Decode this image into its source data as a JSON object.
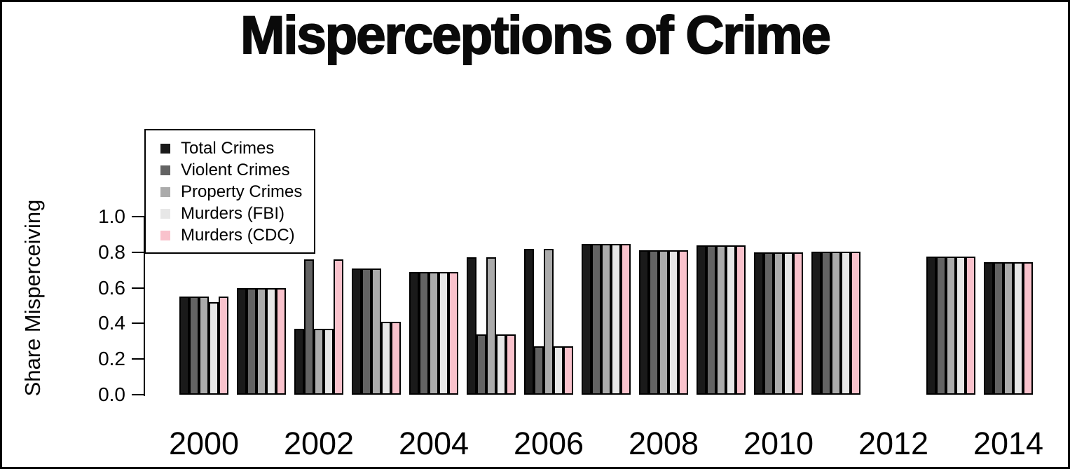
{
  "title": "Misperceptions of Crime",
  "chart_data": {
    "type": "bar",
    "title": "Misperceptions of Crime",
    "xlabel": "",
    "ylabel": "Share Misperceiving",
    "ylim": [
      0.0,
      1.0
    ],
    "grid": false,
    "legend_position": "topleft",
    "bar_border_color": "#000000",
    "yticks": [
      0.0,
      0.2,
      0.4,
      0.6,
      0.8,
      1.0
    ],
    "ytick_labels": [
      "0.0",
      "0.2",
      "0.4",
      "0.6",
      "0.8",
      "1.0"
    ],
    "categories": [
      2000,
      2001,
      2002,
      2003,
      2004,
      2005,
      2006,
      2007,
      2008,
      2009,
      2010,
      2011,
      2012,
      2013,
      2014
    ],
    "xtick_labels": [
      "2000",
      "2002",
      "2004",
      "2006",
      "2008",
      "2010",
      "2012",
      "2014"
    ],
    "series": [
      {
        "name": "Total Crimes",
        "color": "#1a1a1a",
        "values": [
          0.55,
          0.6,
          0.37,
          0.71,
          0.69,
          0.77,
          0.82,
          0.845,
          0.81,
          0.84,
          0.8,
          0.805,
          null,
          0.775,
          0.745
        ]
      },
      {
        "name": "Violent Crimes",
        "color": "#636363",
        "values": [
          0.55,
          0.6,
          0.76,
          0.71,
          0.69,
          0.34,
          0.27,
          0.845,
          0.81,
          0.84,
          0.8,
          0.805,
          null,
          0.775,
          0.745
        ]
      },
      {
        "name": "Property Crimes",
        "color": "#ababab",
        "values": [
          0.55,
          0.6,
          0.37,
          0.71,
          0.69,
          0.77,
          0.82,
          0.845,
          0.81,
          0.84,
          0.8,
          0.805,
          null,
          0.775,
          0.745
        ]
      },
      {
        "name": "Murders (FBI)",
        "color": "#e7e7e7",
        "values": [
          0.52,
          0.6,
          0.37,
          0.41,
          0.69,
          0.34,
          0.27,
          0.845,
          0.81,
          0.84,
          0.8,
          0.805,
          null,
          0.775,
          0.745
        ]
      },
      {
        "name": "Murders (CDC)",
        "color": "#f9c2cc",
        "values": [
          0.55,
          0.6,
          0.76,
          0.41,
          0.69,
          0.34,
          0.27,
          0.845,
          0.81,
          0.84,
          0.8,
          0.805,
          null,
          0.775,
          0.745
        ]
      }
    ]
  }
}
